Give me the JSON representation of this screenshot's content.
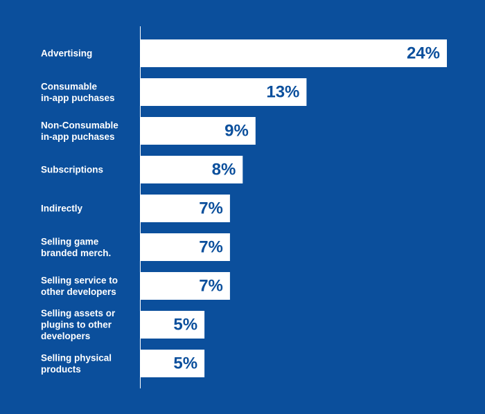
{
  "chart_data": {
    "type": "bar",
    "orientation": "horizontal",
    "categories": [
      "Advertising",
      "Consumable\nin-app puchases",
      "Non-Consumable\nin-app puchases",
      "Subscriptions",
      "Indirectly",
      "Selling game\nbranded merch.",
      "Selling service to\nother developers",
      "Selling assets or\nplugins to other\ndevelopers",
      "Selling physical\nproducts"
    ],
    "values": [
      24,
      13,
      9,
      8,
      7,
      7,
      7,
      5,
      5
    ],
    "value_labels": [
      "24%",
      "13%",
      "9%",
      "8%",
      "7%",
      "7%",
      "7%",
      "5%",
      "5%"
    ],
    "unit": "%",
    "xlim": [
      0,
      24
    ],
    "grid": false,
    "legend": "none",
    "colors": {
      "background": "#0B4F9C",
      "bar": "#FFFFFF",
      "value_text": "#0B4F9C",
      "label_text": "#FFFFFF",
      "axis": "#FFFFFF"
    }
  }
}
